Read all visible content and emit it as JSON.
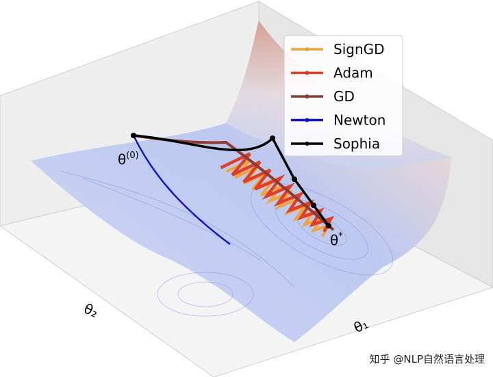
{
  "legend": [
    {
      "name": "SignGD",
      "color": "#f2a33a"
    },
    {
      "name": "Adam",
      "color": "#dc3f2a"
    },
    {
      "name": "GD",
      "color": "#8e3a30"
    },
    {
      "name": "Newton",
      "color": "#1414c8"
    },
    {
      "name": "Sophia",
      "color": "#000000"
    }
  ],
  "labels": {
    "start": "θ",
    "start_superscript": "(0)",
    "optimum": "θ",
    "optimum_superscript": "*",
    "x_axis": "θ₁",
    "y_axis": "θ₂"
  },
  "watermark": "知乎 @NLP自然语言处理"
}
